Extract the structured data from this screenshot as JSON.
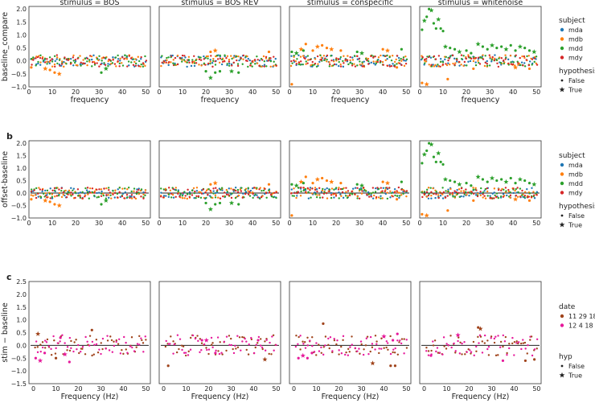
{
  "chart_data": [
    {
      "type": "scatter",
      "panel_label": "",
      "facet_titles": [
        "stimulus = BOS",
        "stimulus = BOS REV",
        "stimulus = conspecific",
        "stimulus = whitenoise"
      ],
      "xlabel": "frequency",
      "ylabel": "baseline_compare",
      "xlim": [
        0,
        52
      ],
      "ylim": [
        -1.0,
        2.1
      ],
      "xticks": [
        0,
        10,
        20,
        30,
        40,
        50
      ],
      "yticks": [
        -1.0,
        -0.5,
        0.0,
        0.5,
        1.0,
        1.5,
        2.0
      ],
      "ytick_labels": [
        "−1.0",
        "−0.5",
        "0.0",
        "0.5",
        "1.0",
        "1.5",
        "2.0"
      ],
      "zero_line": false,
      "legend": {
        "title": "subject",
        "entries": [
          {
            "label": "mda",
            "color": "#1f77b4"
          },
          {
            "label": "mdb",
            "color": "#ff7f0e"
          },
          {
            "label": "mdd",
            "color": "#2ca02c"
          },
          {
            "label": "mdy",
            "color": "#d62728"
          }
        ],
        "marker_title": "hypothesis",
        "marker_entries": [
          {
            "label": "False",
            "marker": "dot"
          },
          {
            "label": "True",
            "marker": "star"
          }
        ]
      },
      "highlights": [
        {
          "facet": 0,
          "series": "mdb",
          "points": [
            [
              1,
              -0.25
            ],
            [
              7,
              -0.3
            ],
            [
              9,
              -0.35
            ],
            [
              11,
              -0.45
            ],
            [
              13,
              -0.5
            ]
          ]
        },
        {
          "facet": 0,
          "series": "mdd",
          "points": [
            [
              31,
              -0.45
            ],
            [
              33,
              -0.3
            ]
          ]
        },
        {
          "facet": 1,
          "series": "mdb",
          "points": [
            [
              22,
              0.35
            ],
            [
              24,
              0.4
            ],
            [
              47,
              0.35
            ]
          ]
        },
        {
          "facet": 1,
          "series": "mdd",
          "points": [
            [
              20,
              -0.4
            ],
            [
              22,
              -0.65
            ],
            [
              24,
              -0.45
            ],
            [
              26,
              -0.4
            ],
            [
              31,
              -0.4
            ],
            [
              34,
              -0.45
            ]
          ]
        },
        {
          "facet": 2,
          "series": "mdb",
          "points": [
            [
              1,
              -0.9
            ],
            [
              5,
              0.45
            ],
            [
              7,
              0.65
            ],
            [
              10,
              0.4
            ],
            [
              12,
              0.55
            ],
            [
              14,
              0.6
            ],
            [
              16,
              0.5
            ],
            [
              18,
              0.45
            ],
            [
              22,
              0.4
            ],
            [
              40,
              0.45
            ],
            [
              42,
              0.4
            ],
            [
              46,
              -0.25
            ]
          ]
        },
        {
          "facet": 2,
          "series": "mdd",
          "points": [
            [
              1,
              0.35
            ],
            [
              3,
              0.3
            ],
            [
              6,
              0.4
            ],
            [
              29,
              0.35
            ],
            [
              31,
              0.3
            ],
            [
              48,
              0.45
            ]
          ]
        },
        {
          "facet": 3,
          "series": "mdd",
          "points": [
            [
              1,
              1.2
            ],
            [
              2,
              1.55
            ],
            [
              3,
              1.7
            ],
            [
              4,
              2.0
            ],
            [
              5,
              1.95
            ],
            [
              6,
              1.45
            ],
            [
              7,
              1.25
            ],
            [
              8,
              1.6
            ],
            [
              9,
              1.25
            ],
            [
              10,
              1.15
            ],
            [
              11,
              0.55
            ],
            [
              13,
              0.5
            ],
            [
              15,
              0.45
            ],
            [
              17,
              0.35
            ],
            [
              20,
              0.4
            ],
            [
              22,
              0.3
            ],
            [
              25,
              0.65
            ],
            [
              27,
              0.55
            ],
            [
              29,
              0.45
            ],
            [
              31,
              0.6
            ],
            [
              33,
              0.5
            ],
            [
              35,
              0.55
            ],
            [
              37,
              0.45
            ],
            [
              39,
              0.6
            ],
            [
              41,
              0.4
            ],
            [
              43,
              0.55
            ],
            [
              45,
              0.5
            ],
            [
              47,
              0.4
            ],
            [
              49,
              0.35
            ]
          ]
        },
        {
          "facet": 3,
          "series": "mdb",
          "points": [
            [
              1,
              -0.85
            ],
            [
              3,
              -0.9
            ],
            [
              12,
              -0.7
            ],
            [
              23,
              -0.3
            ],
            [
              41,
              -0.25
            ],
            [
              47,
              -0.3
            ]
          ]
        }
      ]
    },
    {
      "type": "scatter",
      "panel_label": "b",
      "facet_titles": [],
      "xlabel": "",
      "ylabel": "offset-baseline",
      "xlim": [
        0,
        52
      ],
      "ylim": [
        -1.0,
        2.1
      ],
      "xticks": [
        0,
        10,
        20,
        30,
        40,
        50
      ],
      "yticks": [
        -1.0,
        -0.5,
        0.0,
        0.5,
        1.0,
        1.5,
        2.0
      ],
      "ytick_labels": [
        "−1.0",
        "−0.5",
        "0.0",
        "0.5",
        "1.0",
        "1.5",
        "2.0"
      ],
      "zero_line": true,
      "legend": {
        "title": "subject",
        "entries": [
          {
            "label": "mda",
            "color": "#1f77b4"
          },
          {
            "label": "mdb",
            "color": "#ff7f0e"
          },
          {
            "label": "mdd",
            "color": "#2ca02c"
          },
          {
            "label": "mdy",
            "color": "#d62728"
          }
        ],
        "marker_title": "hypothesis",
        "marker_entries": [
          {
            "label": "False",
            "marker": "dot"
          },
          {
            "label": "True",
            "marker": "star"
          }
        ]
      },
      "highlights": [
        {
          "facet": 0,
          "series": "mdb",
          "points": [
            [
              1,
              -0.25
            ],
            [
              7,
              -0.3
            ],
            [
              9,
              -0.35
            ],
            [
              11,
              -0.45
            ],
            [
              13,
              -0.5
            ]
          ]
        },
        {
          "facet": 0,
          "series": "mdd",
          "points": [
            [
              31,
              -0.45
            ],
            [
              33,
              -0.3
            ]
          ]
        },
        {
          "facet": 1,
          "series": "mdb",
          "points": [
            [
              22,
              0.35
            ],
            [
              24,
              0.4
            ],
            [
              47,
              0.35
            ]
          ]
        },
        {
          "facet": 1,
          "series": "mdd",
          "points": [
            [
              20,
              -0.4
            ],
            [
              22,
              -0.65
            ],
            [
              24,
              -0.45
            ],
            [
              26,
              -0.4
            ],
            [
              31,
              -0.4
            ],
            [
              34,
              -0.45
            ]
          ]
        },
        {
          "facet": 2,
          "series": "mdb",
          "points": [
            [
              1,
              -0.9
            ],
            [
              5,
              0.45
            ],
            [
              7,
              0.65
            ],
            [
              10,
              0.4
            ],
            [
              12,
              0.55
            ],
            [
              14,
              0.6
            ],
            [
              16,
              0.5
            ],
            [
              18,
              0.45
            ],
            [
              22,
              0.4
            ],
            [
              40,
              0.45
            ],
            [
              42,
              0.4
            ],
            [
              46,
              -0.25
            ]
          ]
        },
        {
          "facet": 2,
          "series": "mdd",
          "points": [
            [
              1,
              0.35
            ],
            [
              3,
              0.3
            ],
            [
              6,
              0.4
            ],
            [
              29,
              0.35
            ],
            [
              31,
              0.3
            ],
            [
              48,
              0.45
            ]
          ]
        },
        {
          "facet": 3,
          "series": "mdd",
          "points": [
            [
              1,
              1.2
            ],
            [
              2,
              1.55
            ],
            [
              3,
              1.7
            ],
            [
              4,
              2.0
            ],
            [
              5,
              1.95
            ],
            [
              6,
              1.45
            ],
            [
              7,
              1.25
            ],
            [
              8,
              1.6
            ],
            [
              9,
              1.25
            ],
            [
              10,
              1.15
            ],
            [
              11,
              0.55
            ],
            [
              13,
              0.5
            ],
            [
              15,
              0.45
            ],
            [
              17,
              0.35
            ],
            [
              20,
              0.4
            ],
            [
              22,
              0.3
            ],
            [
              25,
              0.65
            ],
            [
              27,
              0.55
            ],
            [
              29,
              0.45
            ],
            [
              31,
              0.6
            ],
            [
              33,
              0.5
            ],
            [
              35,
              0.55
            ],
            [
              37,
              0.45
            ],
            [
              39,
              0.6
            ],
            [
              41,
              0.4
            ],
            [
              43,
              0.55
            ],
            [
              45,
              0.5
            ],
            [
              47,
              0.4
            ],
            [
              49,
              0.35
            ]
          ]
        },
        {
          "facet": 3,
          "series": "mdb",
          "points": [
            [
              1,
              -0.85
            ],
            [
              3,
              -0.9
            ],
            [
              12,
              -0.7
            ],
            [
              23,
              -0.3
            ],
            [
              41,
              -0.25
            ],
            [
              47,
              -0.3
            ]
          ]
        }
      ]
    },
    {
      "type": "scatter",
      "panel_label": "c",
      "facet_titles": [],
      "xlabel": "Frequency (Hz)",
      "ylabel": "stim − baseline",
      "xlim": [
        -2,
        52
      ],
      "ylim": [
        -1.5,
        2.5
      ],
      "xticks": [
        0,
        10,
        20,
        30,
        40,
        50
      ],
      "yticks": [
        -1.5,
        -1.0,
        -0.5,
        0.0,
        0.5,
        1.0,
        1.5,
        2.0,
        2.5
      ],
      "ytick_labels": [
        "−1.5",
        "−1.0",
        "−0.5",
        "0.0",
        "0.5",
        "1.0",
        "1.5",
        "2.0",
        "2.5"
      ],
      "zero_line": true,
      "legend": {
        "title": "date",
        "entries": [
          {
            "label": "11 29 18",
            "color": "#a0441c"
          },
          {
            "label": "12 4 18",
            "color": "#e6199b"
          }
        ],
        "marker_title": "hyp",
        "marker_entries": [
          {
            "label": "False",
            "marker": "dot"
          },
          {
            "label": "True",
            "marker": "star"
          }
        ]
      },
      "highlights": [
        {
          "facet": 0,
          "series": "12 4 18",
          "points": [
            [
              1,
              -0.5
            ],
            [
              3,
              -0.6
            ],
            [
              5,
              -0.3
            ],
            [
              12,
              0.3
            ],
            [
              14,
              -0.35
            ],
            [
              16,
              -0.65
            ]
          ]
        },
        {
          "facet": 0,
          "series": "11 29 18",
          "points": [
            [
              26,
              0.6
            ],
            [
              2,
              0.45
            ],
            [
              10,
              -0.5
            ]
          ]
        },
        {
          "facet": 1,
          "series": "12 4 18",
          "points": [
            [
              17,
              0.2
            ],
            [
              19,
              0.2
            ],
            [
              23,
              -0.3
            ],
            [
              42,
              0.2
            ]
          ]
        },
        {
          "facet": 1,
          "series": "11 29 18",
          "points": [
            [
              2,
              -0.8
            ],
            [
              45,
              -0.55
            ]
          ]
        },
        {
          "facet": 2,
          "series": "12 4 18",
          "points": [
            [
              2,
              -0.5
            ],
            [
              4,
              -0.4
            ],
            [
              6,
              -0.5
            ],
            [
              8,
              -0.3
            ],
            [
              40,
              0.35
            ],
            [
              44,
              0.2
            ],
            [
              46,
              0.45
            ]
          ]
        },
        {
          "facet": 2,
          "series": "11 29 18",
          "points": [
            [
              13,
              0.85
            ],
            [
              35,
              -0.7
            ],
            [
              43,
              -0.8
            ],
            [
              45,
              -0.8
            ]
          ]
        },
        {
          "facet": 3,
          "series": "12 4 18",
          "points": [
            [
              3,
              -0.4
            ],
            [
              15,
              0.4
            ],
            [
              35,
              -0.6
            ]
          ]
        },
        {
          "facet": 3,
          "series": "11 29 18",
          "points": [
            [
              24,
              0.7
            ],
            [
              25,
              0.65
            ],
            [
              45,
              -0.6
            ],
            [
              49,
              -0.55
            ]
          ]
        }
      ]
    }
  ]
}
